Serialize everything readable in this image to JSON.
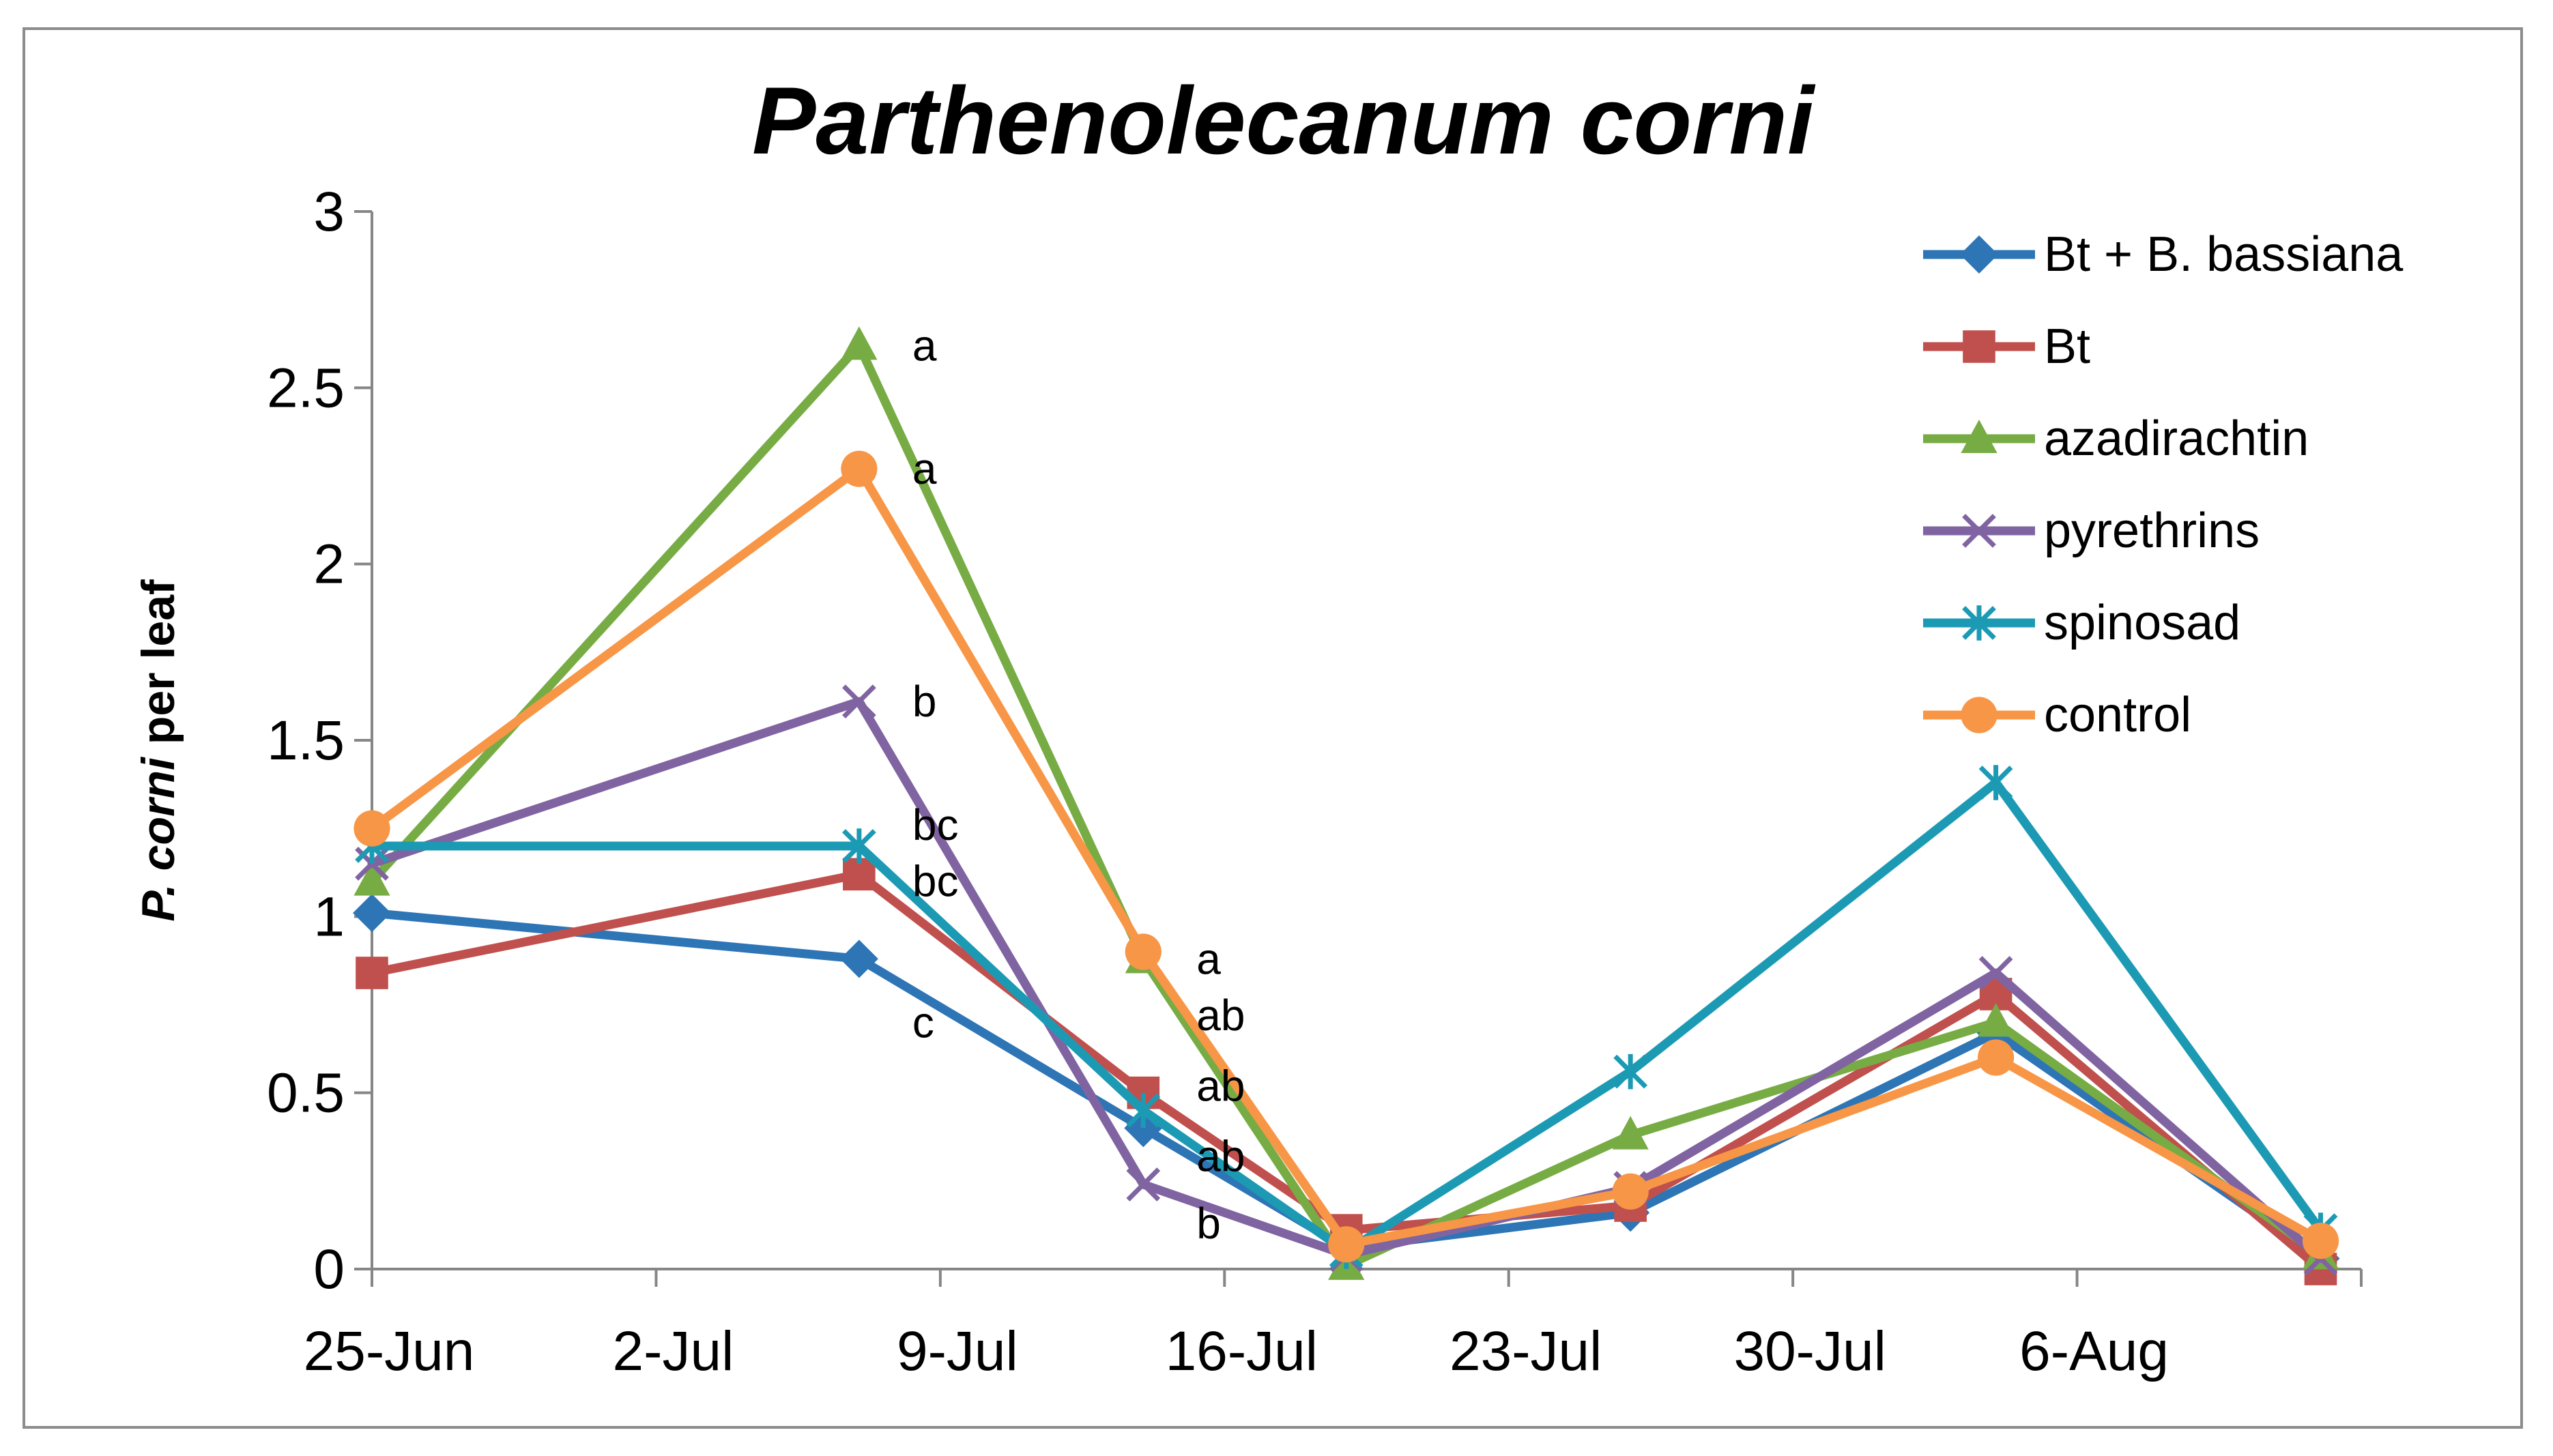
{
  "chart_data": {
    "type": "line",
    "title": "Parthenolecanum corni",
    "ylabel_italic": "P. corni",
    "ylabel_rest": " per leaf",
    "xlabel": "",
    "x_tick_labels": [
      "25-Jun",
      "2-Jul",
      "9-Jul",
      "16-Jul",
      "23-Jul",
      "30-Jul",
      "6-Aug"
    ],
    "y_tick_labels": [
      "0",
      "0.5",
      "1",
      "1.5",
      "2",
      "2.5",
      "3"
    ],
    "x_ticks": [
      0,
      7,
      14,
      21,
      28,
      35,
      42
    ],
    "ylim": [
      0,
      3
    ],
    "xlim": [
      0,
      49
    ],
    "x": [
      0,
      12,
      19,
      24,
      31,
      40,
      48
    ],
    "grid": false,
    "legend_position": "top-right",
    "series": [
      {
        "name": "Bt + B. bassiana",
        "color": "#2E75B6",
        "marker": "diamond",
        "values": [
          1.01,
          0.88,
          0.4,
          0.06,
          0.16,
          0.67,
          0.03
        ]
      },
      {
        "name": "Bt",
        "color": "#C0504D",
        "marker": "square",
        "values": [
          0.84,
          1.12,
          0.5,
          0.11,
          0.18,
          0.78,
          0.0
        ]
      },
      {
        "name": "azadirachtin",
        "color": "#77AC45",
        "marker": "triangle",
        "values": [
          1.1,
          2.62,
          0.88,
          0.01,
          0.38,
          0.7,
          0.04
        ]
      },
      {
        "name": "pyrethrins",
        "color": "#8064A2",
        "marker": "x",
        "values": [
          1.15,
          1.61,
          0.24,
          0.04,
          0.23,
          0.84,
          0.03
        ]
      },
      {
        "name": "spinosad",
        "color": "#1C9AB4",
        "marker": "star",
        "values": [
          1.2,
          1.2,
          0.45,
          0.05,
          0.56,
          1.38,
          0.11
        ]
      },
      {
        "name": "control",
        "color": "#F79646",
        "marker": "circle",
        "values": [
          1.25,
          2.27,
          0.9,
          0.07,
          0.22,
          0.6,
          0.08
        ]
      }
    ],
    "annotations": [
      {
        "text": "a",
        "x": 12,
        "y": 2.62
      },
      {
        "text": "a",
        "x": 12,
        "y": 2.27
      },
      {
        "text": "b",
        "x": 12,
        "y": 1.61
      },
      {
        "text": "bc",
        "x": 12,
        "y": 1.26
      },
      {
        "text": "bc",
        "x": 12,
        "y": 1.1
      },
      {
        "text": "c",
        "x": 12,
        "y": 0.7
      },
      {
        "text": "a",
        "x": 19,
        "y": 0.88
      },
      {
        "text": "ab",
        "x": 19,
        "y": 0.72
      },
      {
        "text": "ab",
        "x": 19,
        "y": 0.52
      },
      {
        "text": "ab",
        "x": 19,
        "y": 0.32
      },
      {
        "text": "b",
        "x": 19,
        "y": 0.13
      }
    ]
  }
}
